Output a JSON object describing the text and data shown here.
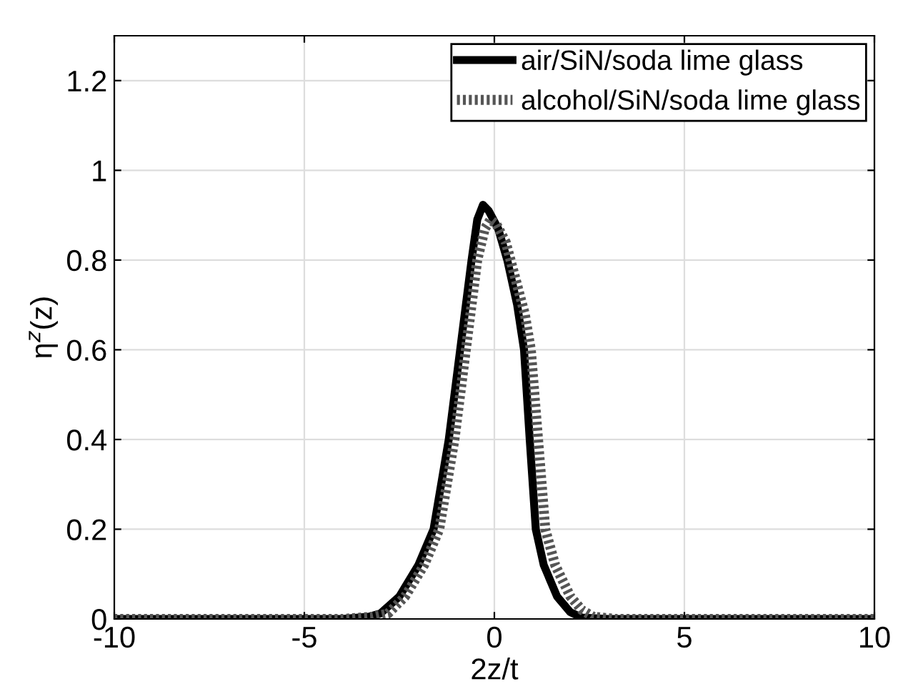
{
  "chart_data": {
    "type": "line",
    "xlabel": "2z/t",
    "ylabel": "η$^{z}$(z)",
    "xlim": [
      -10,
      10
    ],
    "ylim": [
      0,
      1.3
    ],
    "xticks": [
      -10,
      -5,
      0,
      5,
      10
    ],
    "yticks": [
      0,
      0.2,
      0.4,
      0.6,
      0.8,
      1,
      1.2
    ],
    "grid": true,
    "legend": "top right",
    "series": [
      {
        "name": "air/SiN/soda lime glass",
        "color": "#000000",
        "line_style": "solid",
        "x": [
          -10,
          -4,
          -3.3,
          -3,
          -2.5,
          -2,
          -1.6,
          -1.2,
          -0.9,
          -0.6,
          -0.45,
          -0.3,
          -0.15,
          0.1,
          0.34,
          0.6,
          0.78,
          0.93,
          1.09,
          1.3,
          1.65,
          2,
          2.3,
          3,
          10
        ],
        "values": [
          0,
          0,
          0.005,
          0.012,
          0.05,
          0.12,
          0.2,
          0.4,
          0.6,
          0.8,
          0.89,
          0.923,
          0.91,
          0.87,
          0.8,
          0.7,
          0.6,
          0.4,
          0.2,
          0.12,
          0.05,
          0.015,
          0.003,
          0,
          0
        ]
      },
      {
        "name": "alcohol/SiN/soda lime glass",
        "color": "#555555",
        "line_style": "dotted",
        "x": [
          -10,
          -4,
          -3.2,
          -2.8,
          -2.35,
          -1.85,
          -1.45,
          -1.05,
          -0.75,
          -0.45,
          -0.25,
          -0.1,
          0.05,
          0.3,
          0.55,
          0.8,
          0.96,
          1.15,
          1.34,
          1.6,
          2,
          2.3,
          2.6,
          3.2,
          10
        ],
        "values": [
          0,
          0,
          0.005,
          0.012,
          0.05,
          0.12,
          0.2,
          0.4,
          0.6,
          0.8,
          0.87,
          0.89,
          0.88,
          0.84,
          0.76,
          0.68,
          0.6,
          0.4,
          0.2,
          0.12,
          0.05,
          0.02,
          0.005,
          0,
          0
        ]
      }
    ]
  }
}
